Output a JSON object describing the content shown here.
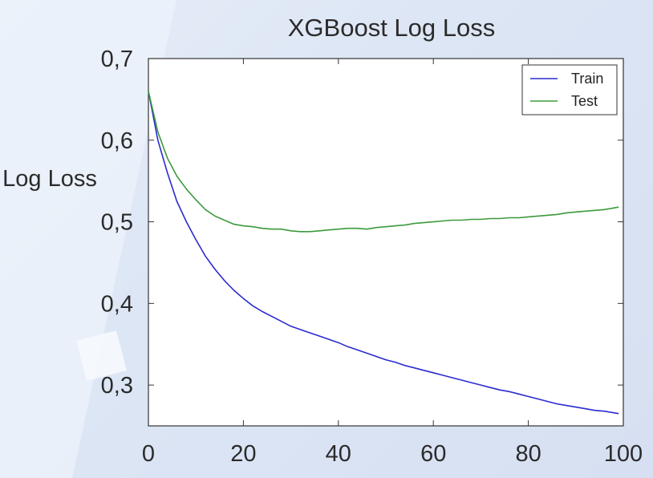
{
  "chart_data": {
    "type": "line",
    "title": "XGBoost Log Loss",
    "xlabel": "",
    "ylabel": "Log Loss",
    "xlim": [
      0,
      100
    ],
    "ylim": [
      0.25,
      0.7
    ],
    "xticks": [
      0,
      20,
      40,
      60,
      80,
      100
    ],
    "xtick_labels": [
      "0",
      "20",
      "40",
      "60",
      "80",
      "100"
    ],
    "yticks": [
      0.3,
      0.4,
      0.5,
      0.6,
      0.7
    ],
    "ytick_labels": [
      "0,3",
      "0,4",
      "0,5",
      "0,6",
      "0,7"
    ],
    "grid": false,
    "legend_position": "top-right",
    "series": [
      {
        "name": "Train",
        "color": "#2a2ad0",
        "x": [
          0,
          2,
          4,
          6,
          8,
          10,
          12,
          14,
          16,
          18,
          20,
          22,
          24,
          26,
          28,
          30,
          32,
          34,
          36,
          38,
          40,
          42,
          44,
          46,
          48,
          50,
          52,
          54,
          56,
          58,
          60,
          62,
          64,
          66,
          68,
          70,
          72,
          74,
          76,
          78,
          80,
          82,
          84,
          86,
          88,
          90,
          92,
          94,
          96,
          98,
          99
        ],
        "y": [
          0.66,
          0.6,
          0.56,
          0.525,
          0.5,
          0.478,
          0.458,
          0.442,
          0.428,
          0.416,
          0.406,
          0.397,
          0.39,
          0.384,
          0.378,
          0.372,
          0.368,
          0.364,
          0.36,
          0.356,
          0.352,
          0.347,
          0.343,
          0.339,
          0.335,
          0.331,
          0.328,
          0.324,
          0.321,
          0.318,
          0.315,
          0.312,
          0.309,
          0.306,
          0.303,
          0.3,
          0.297,
          0.294,
          0.292,
          0.289,
          0.286,
          0.283,
          0.28,
          0.277,
          0.275,
          0.273,
          0.271,
          0.269,
          0.268,
          0.266,
          0.265
        ]
      },
      {
        "name": "Test",
        "color": "#3c9a3c",
        "x": [
          0,
          2,
          4,
          6,
          8,
          10,
          12,
          14,
          16,
          18,
          20,
          22,
          24,
          26,
          28,
          30,
          32,
          34,
          36,
          38,
          40,
          42,
          44,
          46,
          48,
          50,
          52,
          54,
          56,
          58,
          60,
          62,
          64,
          66,
          68,
          70,
          72,
          74,
          76,
          78,
          80,
          82,
          84,
          86,
          88,
          90,
          92,
          94,
          96,
          98,
          99
        ],
        "y": [
          0.66,
          0.61,
          0.578,
          0.556,
          0.54,
          0.527,
          0.515,
          0.507,
          0.502,
          0.497,
          0.495,
          0.494,
          0.492,
          0.491,
          0.491,
          0.489,
          0.488,
          0.488,
          0.489,
          0.49,
          0.491,
          0.492,
          0.492,
          0.491,
          0.493,
          0.494,
          0.495,
          0.496,
          0.498,
          0.499,
          0.5,
          0.501,
          0.502,
          0.502,
          0.503,
          0.503,
          0.504,
          0.504,
          0.505,
          0.505,
          0.506,
          0.507,
          0.508,
          0.509,
          0.511,
          0.512,
          0.513,
          0.514,
          0.515,
          0.517,
          0.518
        ]
      }
    ]
  }
}
